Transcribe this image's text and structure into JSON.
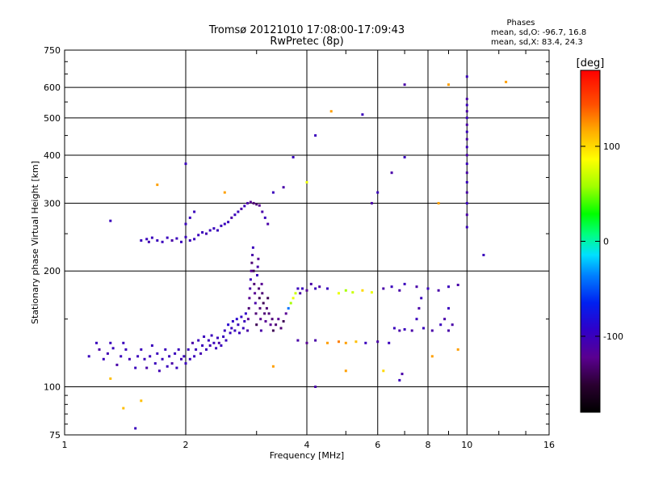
{
  "chart_data": {
    "type": "scatter",
    "title": "Tromsø 20121010 17:08:00-17:09:43",
    "subtitle": "RwPretec (8p)",
    "xlabel": "Frequency [MHz]",
    "ylabel": "Stationary phase Virtual Height [km]",
    "x_scale": "log",
    "y_scale": "log",
    "xlim": [
      1,
      16
    ],
    "ylim": [
      75,
      750
    ],
    "x_ticks": [
      1,
      2,
      4,
      6,
      8,
      10,
      16
    ],
    "y_ticks": [
      75,
      100,
      200,
      300,
      400,
      500,
      600,
      750
    ],
    "x_ticklabels": [
      "1",
      "2",
      "4",
      "6",
      "8",
      "10",
      "16"
    ],
    "y_ticklabels": [
      "75",
      "100",
      "200",
      "300",
      "400",
      "500",
      "600",
      "750"
    ],
    "grid": true,
    "stats": {
      "heading": "Phases",
      "line1": "mean, sd,O: -96.7, 16.8",
      "line2": "mean, sd,X:  83.4, 24.3"
    },
    "colorbar": {
      "label": "[deg]",
      "range": [
        -180,
        180
      ],
      "ticks": [
        100,
        0,
        -100
      ],
      "ticklabels": [
        "100",
        "0",
        "-100"
      ],
      "colormap": "rainbow: black(-180) - purple - blue - cyan - green - yellow - orange - red(180)"
    },
    "series": [
      {
        "points": [
          [
            1.15,
            120,
            -100
          ],
          [
            1.2,
            130,
            -100
          ],
          [
            1.22,
            125,
            -110
          ],
          [
            1.25,
            118,
            -100
          ],
          [
            1.28,
            122,
            -105
          ],
          [
            1.3,
            130,
            -100
          ],
          [
            1.32,
            126,
            -100
          ],
          [
            1.35,
            114,
            -110
          ],
          [
            1.38,
            120,
            -100
          ],
          [
            1.4,
            130,
            -100
          ],
          [
            1.42,
            125,
            -100
          ],
          [
            1.45,
            118,
            -105
          ],
          [
            1.5,
            112,
            -100
          ],
          [
            1.52,
            120,
            -100
          ],
          [
            1.55,
            125,
            -100
          ],
          [
            1.58,
            118,
            -100
          ],
          [
            1.6,
            112,
            -110
          ],
          [
            1.63,
            120,
            -100
          ],
          [
            1.65,
            128,
            -100
          ],
          [
            1.68,
            115,
            -100
          ],
          [
            1.7,
            122,
            -100
          ],
          [
            1.72,
            110,
            -105
          ],
          [
            1.75,
            118,
            -100
          ],
          [
            1.78,
            125,
            -100
          ],
          [
            1.8,
            113,
            -100
          ],
          [
            1.82,
            120,
            -100
          ],
          [
            1.85,
            115,
            -110
          ],
          [
            1.88,
            122,
            -100
          ],
          [
            1.9,
            112,
            -100
          ],
          [
            1.92,
            125,
            -100
          ],
          [
            1.95,
            118,
            -105
          ],
          [
            1.98,
            120,
            -100
          ],
          [
            2.0,
            115,
            -100
          ],
          [
            2.03,
            125,
            -100
          ],
          [
            2.05,
            118,
            -100
          ],
          [
            2.08,
            130,
            -110
          ],
          [
            2.1,
            120,
            -100
          ],
          [
            2.12,
            125,
            -100
          ],
          [
            2.15,
            132,
            -100
          ],
          [
            2.18,
            122,
            -105
          ],
          [
            2.2,
            128,
            -100
          ],
          [
            2.22,
            135,
            -100
          ],
          [
            2.25,
            125,
            -100
          ],
          [
            2.28,
            132,
            -100
          ],
          [
            2.3,
            128,
            -105
          ],
          [
            2.32,
            136,
            -100
          ],
          [
            2.35,
            130,
            -100
          ],
          [
            2.38,
            126,
            -100
          ],
          [
            2.4,
            134,
            -100
          ],
          [
            2.42,
            130,
            -110
          ],
          [
            2.45,
            128,
            -100
          ],
          [
            2.48,
            135,
            -100
          ],
          [
            2.5,
            140,
            -100
          ],
          [
            2.52,
            132,
            -100
          ],
          [
            2.55,
            145,
            -90
          ],
          [
            2.58,
            138,
            -100
          ],
          [
            2.6,
            142,
            -100
          ],
          [
            2.62,
            148,
            -95
          ],
          [
            2.65,
            140,
            -100
          ],
          [
            2.68,
            150,
            -90
          ],
          [
            2.7,
            145,
            -100
          ],
          [
            2.72,
            138,
            -100
          ],
          [
            2.75,
            152,
            -95
          ],
          [
            2.78,
            142,
            -100
          ],
          [
            2.8,
            148,
            -100
          ],
          [
            2.82,
            155,
            -95
          ],
          [
            1.55,
            240,
            -100
          ],
          [
            1.6,
            242,
            -100
          ],
          [
            1.62,
            238,
            -105
          ],
          [
            1.65,
            244,
            -100
          ],
          [
            1.7,
            240,
            -100
          ],
          [
            1.75,
            238,
            -100
          ],
          [
            1.8,
            244,
            -100
          ],
          [
            1.85,
            240,
            -110
          ],
          [
            1.9,
            243,
            -100
          ],
          [
            1.95,
            238,
            -100
          ],
          [
            2.0,
            245,
            -100
          ],
          [
            2.05,
            240,
            -100
          ],
          [
            2.1,
            242,
            -100
          ],
          [
            2.15,
            248,
            -100
          ],
          [
            2.2,
            252,
            -100
          ],
          [
            2.25,
            250,
            -105
          ],
          [
            2.3,
            255,
            -100
          ],
          [
            2.35,
            258,
            -100
          ],
          [
            2.4,
            255,
            -100
          ],
          [
            2.45,
            262,
            -100
          ],
          [
            2.5,
            265,
            -100
          ],
          [
            2.55,
            268,
            -100
          ],
          [
            2.6,
            275,
            -110
          ],
          [
            2.65,
            280,
            -100
          ],
          [
            2.7,
            285,
            -100
          ],
          [
            2.75,
            290,
            -110
          ],
          [
            2.8,
            295,
            -100
          ],
          [
            2.85,
            300,
            -110
          ],
          [
            2.9,
            302,
            -120
          ],
          [
            2.95,
            300,
            -130
          ],
          [
            3.0,
            298,
            -130
          ],
          [
            3.05,
            296,
            -120
          ],
          [
            3.1,
            285,
            -110
          ],
          [
            3.15,
            275,
            -100
          ],
          [
            3.2,
            265,
            -110
          ],
          [
            2.0,
            265,
            -100
          ],
          [
            2.05,
            275,
            -100
          ],
          [
            2.1,
            285,
            -100
          ],
          [
            2.85,
            140,
            -110
          ],
          [
            2.86,
            150,
            -120
          ],
          [
            2.87,
            160,
            -130
          ],
          [
            2.88,
            170,
            -120
          ],
          [
            2.89,
            180,
            -110
          ],
          [
            2.9,
            190,
            -100
          ],
          [
            2.91,
            200,
            -120
          ],
          [
            2.92,
            210,
            -130
          ],
          [
            2.93,
            220,
            -110
          ],
          [
            2.94,
            230,
            -100
          ],
          [
            2.95,
            200,
            -140
          ],
          [
            2.96,
            185,
            -130
          ],
          [
            2.97,
            175,
            -120
          ],
          [
            2.98,
            165,
            -110
          ],
          [
            2.99,
            155,
            -130
          ],
          [
            3.0,
            145,
            -140
          ],
          [
            3.01,
            195,
            -100
          ],
          [
            3.02,
            205,
            -110
          ],
          [
            3.03,
            215,
            -120
          ],
          [
            3.04,
            180,
            -130
          ],
          [
            3.05,
            170,
            -140
          ],
          [
            3.06,
            160,
            -130
          ],
          [
            3.07,
            150,
            -120
          ],
          [
            3.08,
            140,
            -110
          ],
          [
            3.09,
            185,
            -120
          ],
          [
            3.1,
            175,
            -130
          ],
          [
            3.12,
            165,
            -140
          ],
          [
            3.14,
            155,
            -130
          ],
          [
            3.16,
            148,
            -120
          ],
          [
            3.18,
            160,
            -130
          ],
          [
            3.2,
            170,
            -140
          ],
          [
            3.22,
            155,
            -130
          ],
          [
            3.25,
            145,
            -120
          ],
          [
            3.28,
            150,
            -130
          ],
          [
            3.3,
            140,
            -140
          ],
          [
            3.35,
            145,
            -130
          ],
          [
            3.4,
            150,
            -120
          ],
          [
            3.45,
            142,
            -130
          ],
          [
            3.5,
            148,
            -140
          ],
          [
            3.55,
            155,
            -120
          ],
          [
            3.6,
            160,
            -40
          ],
          [
            3.65,
            165,
            60
          ],
          [
            3.7,
            170,
            80
          ],
          [
            3.75,
            175,
            70
          ],
          [
            3.8,
            180,
            -100
          ],
          [
            3.85,
            175,
            -110
          ],
          [
            3.9,
            180,
            -100
          ],
          [
            4.0,
            178,
            -120
          ],
          [
            4.1,
            185,
            -110
          ],
          [
            4.2,
            180,
            -100
          ],
          [
            4.3,
            182,
            -110
          ],
          [
            4.5,
            180,
            -100
          ],
          [
            4.8,
            175,
            80
          ],
          [
            5.0,
            178,
            60
          ],
          [
            5.2,
            176,
            70
          ],
          [
            5.5,
            178,
            100
          ],
          [
            5.8,
            176,
            80
          ],
          [
            6.2,
            180,
            -110
          ],
          [
            6.5,
            182,
            -100
          ],
          [
            6.8,
            178,
            -110
          ],
          [
            7.0,
            185,
            -100
          ],
          [
            7.5,
            182,
            -110
          ],
          [
            8.0,
            180,
            -100
          ],
          [
            8.5,
            178,
            -110
          ],
          [
            9.0,
            182,
            -100
          ],
          [
            9.5,
            184,
            -110
          ],
          [
            3.8,
            132,
            -110
          ],
          [
            4.0,
            130,
            -120
          ],
          [
            4.2,
            132,
            -110
          ],
          [
            4.5,
            130,
            120
          ],
          [
            4.8,
            131,
            130
          ],
          [
            5.0,
            130,
            120
          ],
          [
            5.3,
            131,
            110
          ],
          [
            5.6,
            130,
            -100
          ],
          [
            6.0,
            131,
            -110
          ],
          [
            6.4,
            130,
            -100
          ],
          [
            6.6,
            142,
            -100
          ],
          [
            6.8,
            140,
            -110
          ],
          [
            7.0,
            141,
            -100
          ],
          [
            7.3,
            140,
            -110
          ],
          [
            7.8,
            142,
            -100
          ],
          [
            8.2,
            140,
            -110
          ],
          [
            8.6,
            145,
            -100
          ],
          [
            9.0,
            140,
            -110
          ],
          [
            7.5,
            150,
            -100
          ],
          [
            7.6,
            160,
            -110
          ],
          [
            7.7,
            170,
            -100
          ],
          [
            8.8,
            150,
            -110
          ],
          [
            9.0,
            160,
            -100
          ],
          [
            9.2,
            145,
            -110
          ],
          [
            10.0,
            260,
            -100
          ],
          [
            10.0,
            280,
            -110
          ],
          [
            10.0,
            300,
            -100
          ],
          [
            10.0,
            320,
            -110
          ],
          [
            10.0,
            340,
            -100
          ],
          [
            10.0,
            360,
            -110
          ],
          [
            10.0,
            380,
            -100
          ],
          [
            10.0,
            400,
            -110
          ],
          [
            10.0,
            420,
            -100
          ],
          [
            10.0,
            440,
            -110
          ],
          [
            10.0,
            460,
            -100
          ],
          [
            10.0,
            480,
            -110
          ],
          [
            10.0,
            500,
            -100
          ],
          [
            10.0,
            520,
            -110
          ],
          [
            10.0,
            540,
            -100
          ],
          [
            10.0,
            560,
            -110
          ],
          [
            10.0,
            640,
            -100
          ],
          [
            1.3,
            270,
            -100
          ],
          [
            1.3,
            105,
            110
          ],
          [
            1.4,
            88,
            110
          ],
          [
            1.55,
            92,
            110
          ],
          [
            1.5,
            78,
            -100
          ],
          [
            1.7,
            335,
            120
          ],
          [
            2.0,
            380,
            -100
          ],
          [
            2.5,
            320,
            120
          ],
          [
            3.3,
            320,
            -100
          ],
          [
            3.5,
            330,
            -110
          ],
          [
            3.7,
            395,
            -100
          ],
          [
            4.0,
            340,
            80
          ],
          [
            4.2,
            450,
            -100
          ],
          [
            4.6,
            520,
            120
          ],
          [
            5.5,
            510,
            -100
          ],
          [
            5.8,
            300,
            -110
          ],
          [
            6.0,
            320,
            -100
          ],
          [
            6.5,
            360,
            -110
          ],
          [
            7.0,
            395,
            -100
          ],
          [
            7.0,
            610,
            -110
          ],
          [
            8.5,
            300,
            120
          ],
          [
            9.0,
            610,
            120
          ],
          [
            11.0,
            220,
            -100
          ],
          [
            12.5,
            620,
            120
          ],
          [
            4.2,
            100,
            -110
          ],
          [
            5.0,
            110,
            120
          ],
          [
            6.2,
            110,
            100
          ],
          [
            6.8,
            104,
            -100
          ],
          [
            6.9,
            108,
            -110
          ],
          [
            3.3,
            113,
            120
          ],
          [
            9.5,
            125,
            120
          ],
          [
            8.2,
            120,
            120
          ]
        ]
      }
    ]
  }
}
